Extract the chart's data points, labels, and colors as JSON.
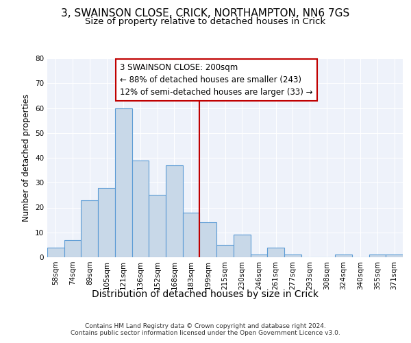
{
  "title_line1": "3, SWAINSON CLOSE, CRICK, NORTHAMPTON, NN6 7GS",
  "title_line2": "Size of property relative to detached houses in Crick",
  "xlabel": "Distribution of detached houses by size in Crick",
  "ylabel": "Number of detached properties",
  "bar_labels": [
    "58sqm",
    "74sqm",
    "89sqm",
    "105sqm",
    "121sqm",
    "136sqm",
    "152sqm",
    "168sqm",
    "183sqm",
    "199sqm",
    "215sqm",
    "230sqm",
    "246sqm",
    "261sqm",
    "277sqm",
    "293sqm",
    "308sqm",
    "324sqm",
    "340sqm",
    "355sqm",
    "371sqm"
  ],
  "bar_heights": [
    4,
    7,
    23,
    28,
    60,
    39,
    25,
    37,
    18,
    14,
    5,
    9,
    1,
    4,
    1,
    0,
    0,
    1,
    0,
    1,
    1
  ],
  "bar_color": "#c8d8e8",
  "bar_edge_color": "#5b9bd5",
  "reference_line_x_label": "199sqm",
  "reference_line_color": "#c00000",
  "annotation_text": "3 SWAINSON CLOSE: 200sqm\n← 88% of detached houses are smaller (243)\n12% of semi-detached houses are larger (33) →",
  "annotation_box_color": "#c00000",
  "ylim": [
    0,
    80
  ],
  "yticks": [
    0,
    10,
    20,
    30,
    40,
    50,
    60,
    70,
    80
  ],
  "plot_bg_color": "#eef2fa",
  "grid_color": "#ffffff",
  "footer_text": "Contains HM Land Registry data © Crown copyright and database right 2024.\nContains public sector information licensed under the Open Government Licence v3.0.",
  "title_fontsize": 11,
  "subtitle_fontsize": 9.5,
  "xlabel_fontsize": 10,
  "ylabel_fontsize": 8.5,
  "tick_fontsize": 7.5,
  "annotation_fontsize": 8.5,
  "footer_fontsize": 6.5
}
